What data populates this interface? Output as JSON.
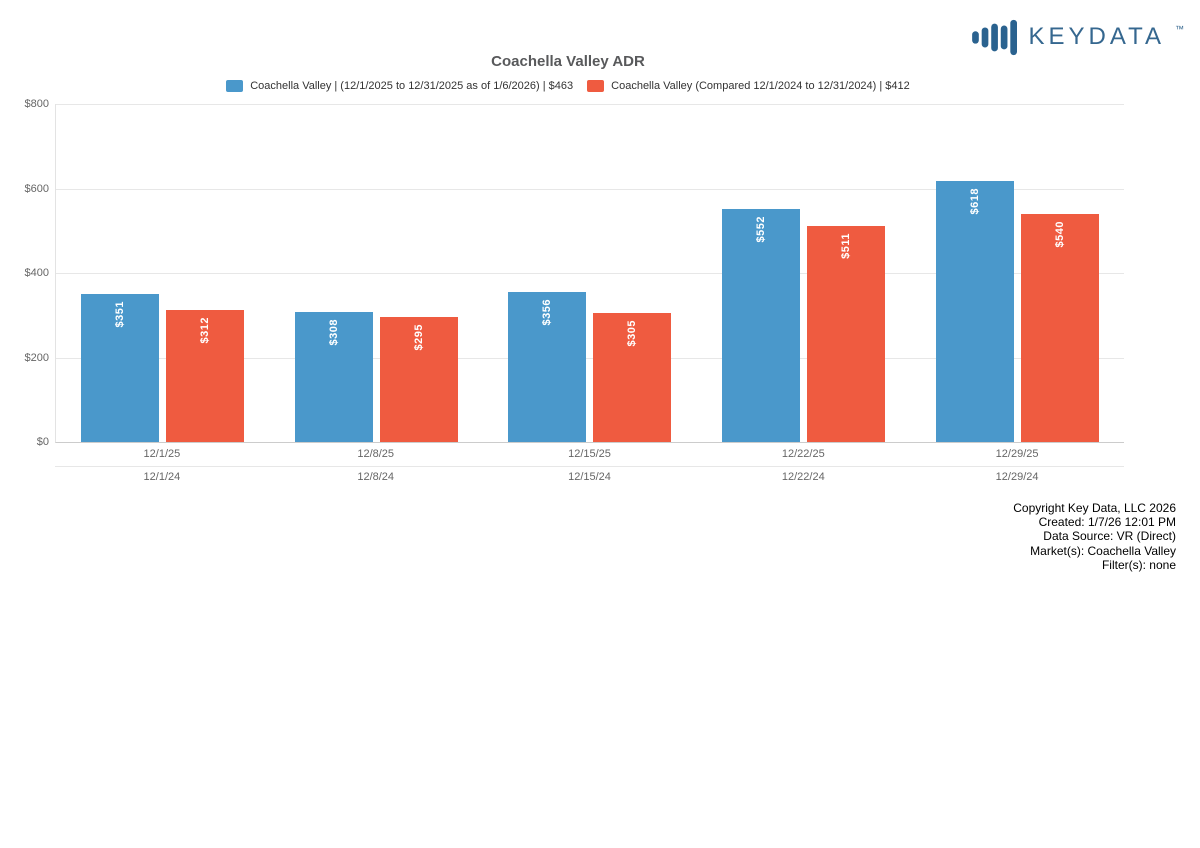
{
  "logo": {
    "brand": "KEYDATA",
    "tm": "™",
    "color": "#35678f"
  },
  "title": "Coachella Valley ADR",
  "chart_data": {
    "type": "bar",
    "title": "Coachella Valley ADR",
    "categories_row1": [
      "12/1/25",
      "12/8/25",
      "12/15/25",
      "12/22/25",
      "12/29/25"
    ],
    "categories_row2": [
      "12/1/24",
      "12/8/24",
      "12/15/24",
      "12/22/24",
      "12/29/24"
    ],
    "series": [
      {
        "name": "Coachella Valley | (12/1/2025 to 12/31/2025 as of 1/6/2026) | $463",
        "color": "#4a98cb",
        "values": [
          351,
          308,
          356,
          552,
          618
        ],
        "labels": [
          "$351",
          "$308",
          "$356",
          "$552",
          "$618"
        ]
      },
      {
        "name": "Coachella Valley (Compared 12/1/2024 to 12/31/2024) | $412",
        "color": "#ef5b40",
        "values": [
          312,
          295,
          305,
          511,
          540
        ],
        "labels": [
          "$312",
          "$295",
          "$305",
          "$511",
          "$540"
        ]
      }
    ],
    "ylabel": "",
    "xlabel": "",
    "ylim": [
      0,
      800
    ],
    "yticks": {
      "values": [
        0,
        200,
        400,
        600,
        800
      ],
      "labels": [
        "$0",
        "$200",
        "$400",
        "$600",
        "$800"
      ]
    },
    "grid": true,
    "legend_position": "top"
  },
  "footer": {
    "lines": [
      "Copyright Key Data, LLC 2026",
      "Created: 1/7/26 12:01 PM",
      "Data Source: VR (Direct)",
      "Market(s):  Coachella Valley",
      "Filter(s): none"
    ]
  }
}
